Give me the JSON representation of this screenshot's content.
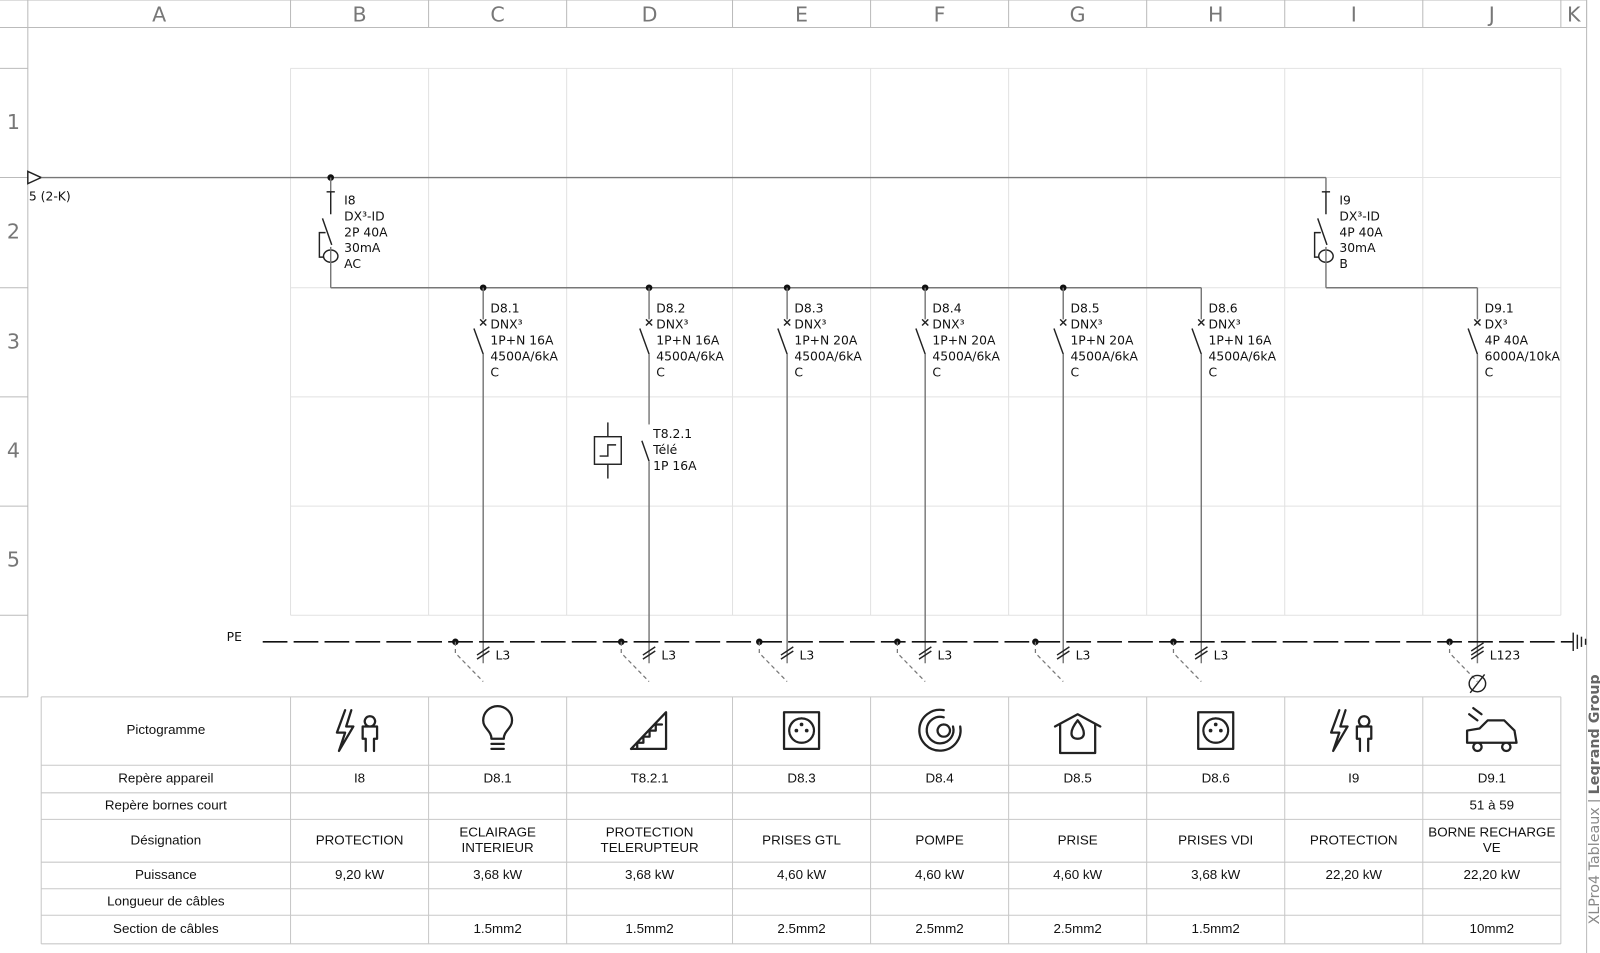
{
  "columns": [
    "A",
    "B",
    "C",
    "D",
    "E",
    "F",
    "G",
    "H",
    "I",
    "J",
    "K"
  ],
  "rows": [
    "1",
    "2",
    "3",
    "4",
    "5"
  ],
  "feed_label": "5 (2-K)",
  "pe_label": "PE",
  "devices": [
    [
      "I8",
      "DX³-ID",
      "2P 40A",
      "30mA",
      "AC"
    ],
    [
      "I9",
      "DX³-ID",
      "4P 40A",
      "30mA",
      "B"
    ],
    [
      "D8.1",
      "DNX³",
      "1P+N 16A",
      "4500A/6kA",
      "C"
    ],
    [
      "D8.2",
      "DNX³",
      "1P+N 16A",
      "4500A/6kA",
      "C"
    ],
    [
      "D8.3",
      "DNX³",
      "1P+N 20A",
      "4500A/6kA",
      "C"
    ],
    [
      "D8.4",
      "DNX³",
      "1P+N 20A",
      "4500A/6kA",
      "C"
    ],
    [
      "D8.5",
      "DNX³",
      "1P+N 20A",
      "4500A/6kA",
      "C"
    ],
    [
      "D8.6",
      "DNX³",
      "1P+N 16A",
      "4500A/6kA",
      "C"
    ],
    [
      "D9.1",
      "DX³",
      "4P 40A",
      "6000A/10kA",
      "C"
    ],
    [
      "T8.2.1",
      "Télé",
      "1P 16A"
    ]
  ],
  "cables": [
    "L3",
    "L3",
    "L3",
    "L3",
    "L3",
    "L3",
    "L123"
  ],
  "table": {
    "pictogram_header": "Pictogramme",
    "rows": [
      [
        "Repère appareil",
        "I8",
        "D8.1",
        "T8.2.1",
        "D8.3",
        "D8.4",
        "D8.5",
        "D8.6",
        "I9",
        "D9.1"
      ],
      [
        "Repère bornes court",
        null,
        null,
        null,
        null,
        null,
        null,
        null,
        null,
        "51 à 59"
      ],
      [
        "Désignation",
        [
          "PROTECTION"
        ],
        [
          "ECLAIRAGE",
          "INTERIEUR"
        ],
        [
          "PROTECTION",
          "TELERUPTEUR"
        ],
        [
          "PRISES GTL"
        ],
        [
          "POMPE"
        ],
        [
          "PRISE"
        ],
        [
          "PRISES VDI"
        ],
        [
          "PROTECTION"
        ],
        [
          "BORNE RECHARGE",
          "VE"
        ]
      ],
      [
        "Puissance",
        "9,20 kW",
        "3,68 kW",
        "3,68 kW",
        "4,60 kW",
        "4,60 kW",
        "4,60 kW",
        "3,68 kW",
        "22,20 kW",
        "22,20 kW"
      ],
      [
        "Longueur de câbles",
        null,
        null,
        null,
        null,
        null,
        null,
        null,
        null,
        null
      ],
      [
        "Section de câbles",
        null,
        "1.5mm2",
        "1.5mm2",
        "2.5mm2",
        "2.5mm2",
        "2.5mm2",
        "1.5mm2",
        null,
        "10mm2"
      ]
    ]
  },
  "footer": {
    "software": "XLPro4 Tableaux",
    "separator": "|",
    "company": "Legrand Group"
  }
}
